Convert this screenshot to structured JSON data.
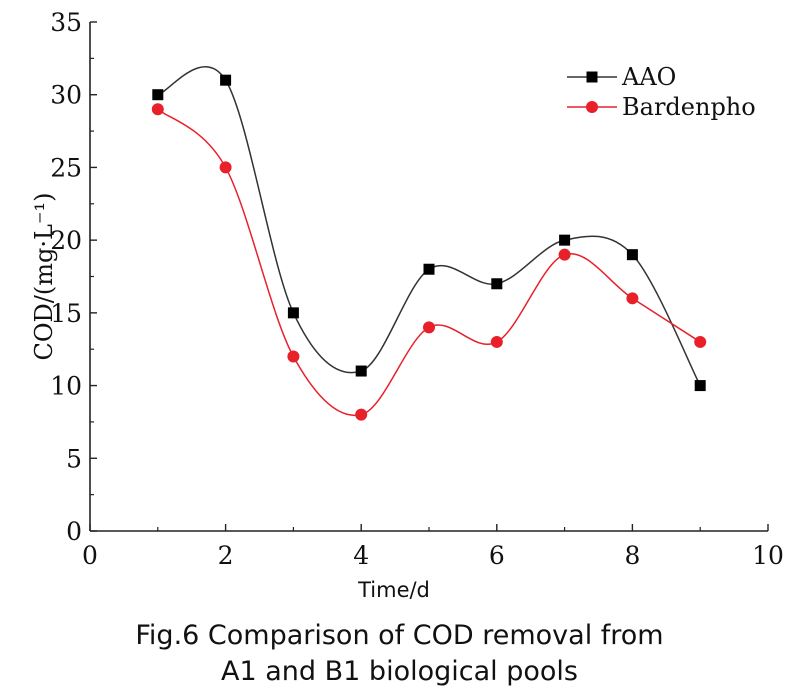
{
  "chart_data": {
    "type": "line",
    "title": "",
    "xlabel": "Time/d",
    "ylabel": "COD/(mg·L⁻¹)",
    "xlim": [
      0,
      10
    ],
    "ylim": [
      0,
      35
    ],
    "x_ticks": [
      0,
      2,
      4,
      6,
      8,
      10
    ],
    "y_ticks": [
      0,
      5,
      10,
      15,
      20,
      25,
      30,
      35
    ],
    "grid": false,
    "legend_position": "top-right",
    "x": [
      1,
      2,
      3,
      4,
      5,
      6,
      7,
      8,
      9
    ],
    "series": [
      {
        "name": "AAO",
        "values": [
          30,
          31,
          15,
          11,
          18,
          17,
          20,
          19,
          10
        ],
        "color": "#000000",
        "marker": "square",
        "line_color": "#333333"
      },
      {
        "name": "Bardenpho",
        "values": [
          29,
          25,
          12,
          8,
          14,
          13,
          19,
          16,
          13
        ],
        "color": "#e8202a",
        "marker": "circle",
        "line_color": "#e8202a"
      }
    ]
  },
  "caption": {
    "line1": "Fig.6 Comparison of COD removal from",
    "line2": "A1 and B1 biological pools"
  }
}
